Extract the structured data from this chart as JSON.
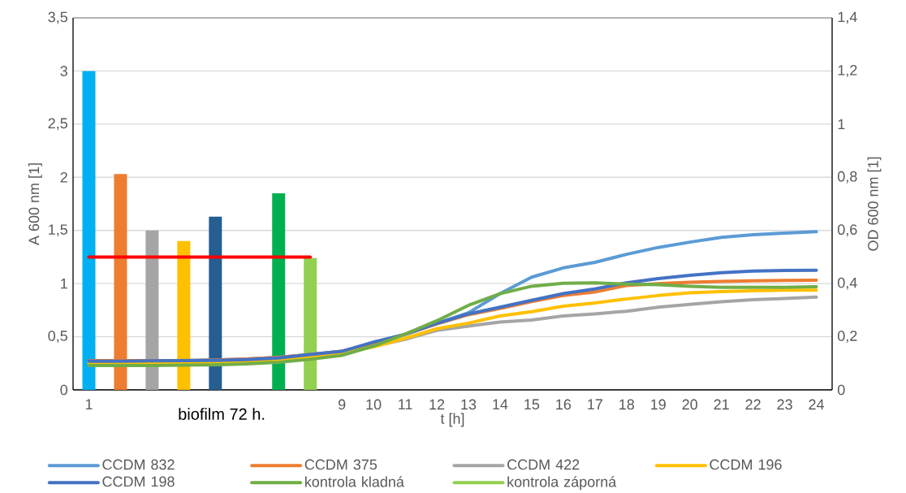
{
  "chart_data": {
    "type": "bar",
    "categories": [
      "1",
      null,
      null,
      null,
      null,
      null,
      null,
      null,
      "9",
      "10",
      "11",
      "12",
      "13",
      "14",
      "15",
      "16",
      "17",
      "18",
      "19",
      "20",
      "21",
      "22",
      "23",
      "24"
    ],
    "series": [
      {
        "colors": [
          "#00b0f0",
          "#ed7d31",
          "#a5a5a5",
          "#ffc000",
          "#255e91",
          null,
          "#00b050",
          "#92d050",
          null,
          null,
          null,
          null,
          null,
          null,
          null,
          null,
          null,
          null,
          null,
          null,
          null,
          null,
          null,
          null
        ],
        "values": [
          3.0,
          2.03,
          1.5,
          1.4,
          1.63,
          null,
          1.85,
          1.24,
          null,
          null,
          null,
          null,
          null,
          null,
          null,
          null,
          null,
          null,
          null,
          null,
          null,
          null,
          null,
          null
        ]
      },
      {
        "type": "line",
        "color": "#ff0000",
        "values": [
          1.25,
          1.25,
          1.25,
          1.25,
          1.25,
          1.25,
          1.25,
          1.25,
          null,
          null,
          null,
          null,
          null,
          null,
          null,
          null,
          null,
          null,
          null,
          null,
          null,
          null,
          null,
          null
        ]
      },
      {
        "type": "line",
        "axis": "y2",
        "name": "CCDM 832",
        "color": "#5b9bd5",
        "values": [
          0.11,
          0.11,
          0.11,
          0.11,
          0.112,
          0.116,
          0.122,
          0.133,
          0.145,
          0.175,
          0.209,
          0.25,
          0.29,
          0.362,
          0.424,
          0.459,
          0.48,
          0.51,
          0.536,
          0.556,
          0.574,
          0.584,
          0.59,
          0.595
        ]
      },
      {
        "type": "line",
        "axis": "y2",
        "name": "CCDM 375",
        "color": "#ed7d31",
        "values": [
          0.11,
          0.11,
          0.11,
          0.11,
          0.112,
          0.116,
          0.122,
          0.133,
          0.145,
          0.175,
          0.209,
          0.248,
          0.283,
          0.306,
          0.332,
          0.355,
          0.368,
          0.393,
          0.4,
          0.405,
          0.408,
          0.41,
          0.412,
          0.413
        ]
      },
      {
        "type": "line",
        "axis": "y2",
        "name": "CCDM 422",
        "color": "#a5a5a5",
        "values": [
          0.1,
          0.1,
          0.1,
          null,
          0.102,
          0.106,
          0.112,
          0.124,
          0.138,
          null,
          0.19,
          0.224,
          0.24,
          0.255,
          0.263,
          0.278,
          0.286,
          0.296,
          0.311,
          0.322,
          0.332,
          0.339,
          0.344,
          0.349
        ]
      },
      {
        "type": "line",
        "axis": "y2",
        "name": "CCDM 196",
        "color": "#ffc000",
        "values": [
          0.1,
          0.1,
          0.1,
          0.1,
          0.102,
          0.106,
          0.112,
          0.124,
          0.138,
          0.162,
          0.194,
          0.23,
          0.251,
          0.278,
          0.294,
          0.315,
          0.327,
          0.342,
          0.355,
          0.365,
          0.37,
          0.373,
          0.375,
          0.375
        ]
      },
      {
        "type": "line",
        "axis": "y2",
        "name": "CCDM 198",
        "color": "#4472c4",
        "values": [
          0.108,
          0.108,
          0.109,
          0.11,
          0.111,
          0.114,
          0.12,
          0.133,
          0.145,
          0.18,
          0.209,
          0.25,
          0.286,
          0.311,
          0.337,
          0.362,
          0.38,
          0.403,
          0.419,
          0.431,
          0.441,
          0.447,
          0.449,
          0.45
        ]
      },
      {
        "type": "line",
        "axis": "y2",
        "name": "kontrola kladná",
        "color": "#70ad47",
        "values": [
          0.092,
          0.092,
          0.092,
          0.093,
          0.094,
          0.098,
          0.104,
          0.115,
          0.13,
          0.165,
          0.21,
          0.26,
          0.318,
          0.362,
          0.39,
          0.401,
          0.403,
          0.398,
          0.396,
          0.39,
          0.386,
          0.386,
          0.386,
          0.388
        ]
      },
      {
        "type": "line",
        "axis": "y2",
        "name": "kontrola záporná",
        "color": "#92d050",
        "values": [
          null,
          null,
          null,
          null,
          null,
          null,
          null,
          null,
          null,
          null,
          null,
          null,
          null,
          null,
          null,
          null,
          null,
          null,
          null,
          null,
          null,
          null,
          null,
          null
        ]
      }
    ],
    "xlabel": "t [h]",
    "ylabel": "A 600 nm [1]",
    "y2label": "OD 600 nm [1]",
    "ylim": [
      0,
      3.5
    ],
    "yticks": [
      0,
      {
        "value": 0.5,
        "label": "0,5"
      },
      1,
      {
        "value": 1.5,
        "label": "1,5"
      },
      2,
      {
        "value": 2.5,
        "label": "2,5"
      },
      3,
      {
        "value": 3.5,
        "label": "3,5"
      }
    ],
    "y2lim": [
      0,
      1.4
    ],
    "y2ticks": [
      0,
      {
        "value": 0.2,
        "label": "0,2"
      },
      {
        "value": 0.4,
        "label": "0,4"
      },
      {
        "value": 0.6,
        "label": "0,6"
      },
      {
        "value": 0.8,
        "label": "0,8"
      },
      1,
      {
        "value": 1.2,
        "label": "1,2"
      },
      {
        "value": 1.4,
        "label": "1,4"
      }
    ],
    "grid": "y",
    "legend": "bottom",
    "annotations": [
      "biofilm 72 h."
    ]
  }
}
